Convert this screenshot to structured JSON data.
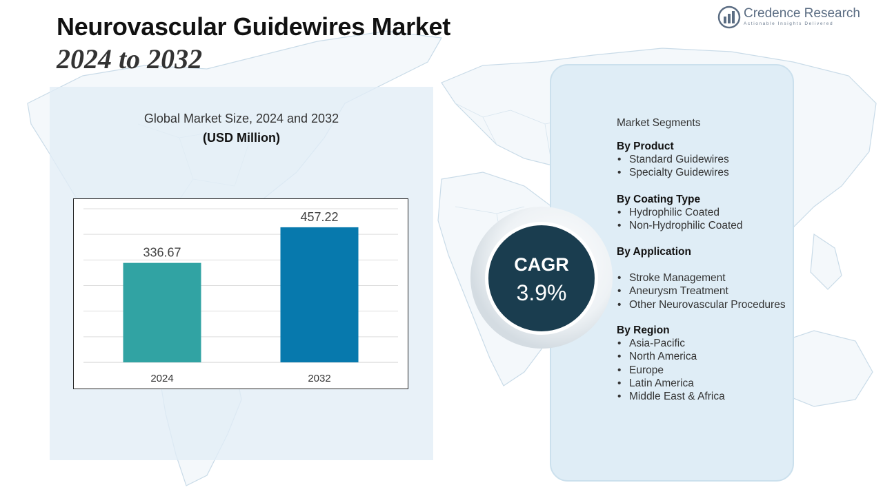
{
  "header": {
    "title": "Neurovascular Guidewires Market",
    "subtitle": "2024 to 2032"
  },
  "logo": {
    "name": "Credence Research",
    "tagline": "Actionable Insights Delivered"
  },
  "chart_data": {
    "type": "bar",
    "title": "Global Market Size, 2024 and 2032",
    "unit": "(USD Million)",
    "categories": [
      "2024",
      "2032"
    ],
    "values": [
      336.67,
      457.22
    ],
    "data_labels": [
      "336.67",
      "457.22"
    ],
    "ylim": [
      0,
      520
    ],
    "grid": true,
    "legend": "none",
    "colors": [
      "#31a3a3",
      "#0779ad"
    ]
  },
  "cagr": {
    "label": "CAGR",
    "value": "3.9%"
  },
  "segments": {
    "heading": "Market Segments",
    "groups": [
      {
        "title": "By Product",
        "items": [
          "Standard Guidewires",
          "Specialty Guidewires"
        ]
      },
      {
        "title": "By Coating Type",
        "items": [
          "Hydrophilic Coated",
          "Non-Hydrophilic Coated"
        ]
      },
      {
        "title": "By Application",
        "items": [
          "Stroke Management",
          "Aneurysm Treatment",
          "Other Neurovascular Procedures"
        ]
      },
      {
        "title": "By Region",
        "items": [
          "Asia-Pacific",
          "North America",
          "Europe",
          "Latin America",
          "Middle East & Africa"
        ]
      }
    ]
  },
  "colors": {
    "panel": "#dfedf6",
    "cagr_circle": "#1a3d4f",
    "map": "#c9dbe8"
  }
}
